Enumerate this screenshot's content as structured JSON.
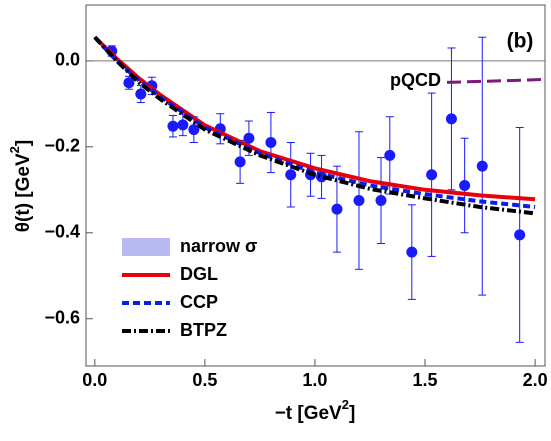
{
  "chart_data": {
    "type": "errorbar",
    "annotation": "(b)",
    "xlabel": "−t [GeV",
    "xlabel_sup": "2",
    "xlabel_end": "]",
    "ylabel": "θ(t)   [GeV",
    "ylabel_sup": "2",
    "ylabel_end": "]",
    "xlim": [
      -0.04,
      2.045
    ],
    "ylim": [
      -0.71,
      0.13
    ],
    "xticks": [
      {
        "value": 0,
        "label": "0.0"
      },
      0.5,
      {
        "value": 1,
        "label": "1.0"
      },
      1.5,
      {
        "value": 2,
        "label": "2.0"
      }
    ],
    "yticks": [
      {
        "value": 0,
        "label": "0.0"
      },
      {
        "value": -0.2,
        "label": "−0.2"
      },
      {
        "value": -0.4,
        "label": "−0.4"
      },
      {
        "value": -0.6,
        "label": "−0.6"
      }
    ],
    "hline": 0,
    "points": {
      "color": "#1a1aff",
      "x": [
        0.077,
        0.155,
        0.209,
        0.259,
        0.355,
        0.4,
        0.45,
        0.57,
        0.66,
        0.7,
        0.8,
        0.89,
        0.98,
        1.03,
        1.1,
        1.2,
        1.3,
        1.34,
        1.44,
        1.53,
        1.62,
        1.68,
        1.76,
        1.93
      ],
      "values": [
        0.023,
        -0.051,
        -0.077,
        -0.058,
        -0.152,
        -0.149,
        -0.16,
        -0.158,
        -0.235,
        -0.18,
        -0.19,
        -0.265,
        -0.265,
        -0.27,
        -0.345,
        -0.325,
        -0.325,
        -0.22,
        -0.445,
        -0.265,
        -0.135,
        -0.29,
        -0.245,
        -0.405
      ],
      "errors": [
        0.012,
        0.015,
        0.02,
        0.02,
        0.025,
        0.025,
        0.03,
        0.035,
        0.05,
        0.04,
        0.07,
        0.075,
        0.05,
        0.05,
        0.1,
        0.16,
        0.1,
        0.09,
        0.11,
        0.19,
        0.165,
        0.11,
        0.3,
        0.25
      ]
    },
    "series": [
      {
        "name": "narrow σ",
        "color": "#b8b8f2",
        "style": "band"
      },
      {
        "name": "DGL",
        "color": "#e8000b",
        "style": "solid",
        "x": [
          0,
          0.1,
          0.2,
          0.3,
          0.4,
          0.5,
          0.75,
          1,
          1.25,
          1.5,
          1.75,
          2
        ],
        "values": [
          0.055,
          0.005,
          -0.04,
          -0.08,
          -0.115,
          -0.15,
          -0.21,
          -0.25,
          -0.28,
          -0.3,
          -0.313,
          -0.322
        ]
      },
      {
        "name": "CCP",
        "color": "#0a1ee6",
        "style": "dashed",
        "x": [
          0,
          0.1,
          0.2,
          0.3,
          0.4,
          0.5,
          0.75,
          1,
          1.25,
          1.5,
          1.75,
          2
        ],
        "values": [
          0.055,
          0,
          -0.045,
          -0.085,
          -0.12,
          -0.155,
          -0.215,
          -0.26,
          -0.29,
          -0.31,
          -0.327,
          -0.34
        ]
      },
      {
        "name": "BTPZ",
        "color": "#000000",
        "style": "dashdot",
        "x": [
          0,
          0.1,
          0.2,
          0.3,
          0.4,
          0.5,
          0.75,
          1,
          1.25,
          1.5,
          1.75,
          2
        ],
        "values": [
          0.055,
          0,
          -0.05,
          -0.09,
          -0.125,
          -0.16,
          -0.22,
          -0.265,
          -0.298,
          -0.32,
          -0.34,
          -0.355
        ]
      }
    ],
    "pqcd": {
      "name": "pQCD",
      "color": "#7b1a7b",
      "style": "longdash",
      "x": [
        1.6,
        1.8,
        2,
        2.045
      ],
      "values": [
        -0.05,
        -0.047,
        -0.044,
        -0.043
      ]
    }
  }
}
